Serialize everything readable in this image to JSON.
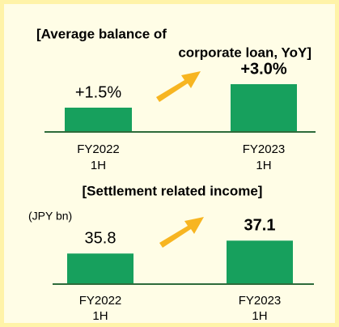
{
  "chart_data": [
    {
      "type": "bar",
      "title": [
        "[Average balance of",
        "corporate loan, YoY]"
      ],
      "categories": [
        [
          "FY2022",
          "1H"
        ],
        [
          "FY2023",
          "1H"
        ]
      ],
      "values": [
        1.5,
        3.0
      ],
      "value_labels": [
        "+1.5%",
        "+3.0%"
      ],
      "color": "#17a05d",
      "ylim": [
        0,
        4.5
      ]
    },
    {
      "type": "bar",
      "title": [
        "[Settlement related income]"
      ],
      "unit": "(JPY bn)",
      "categories": [
        [
          "FY2022",
          "1H"
        ],
        [
          "FY2023",
          "1H"
        ]
      ],
      "values": [
        35.8,
        37.1
      ],
      "color": "#17a05d",
      "ylim": [
        32.8,
        39.9
      ]
    }
  ]
}
